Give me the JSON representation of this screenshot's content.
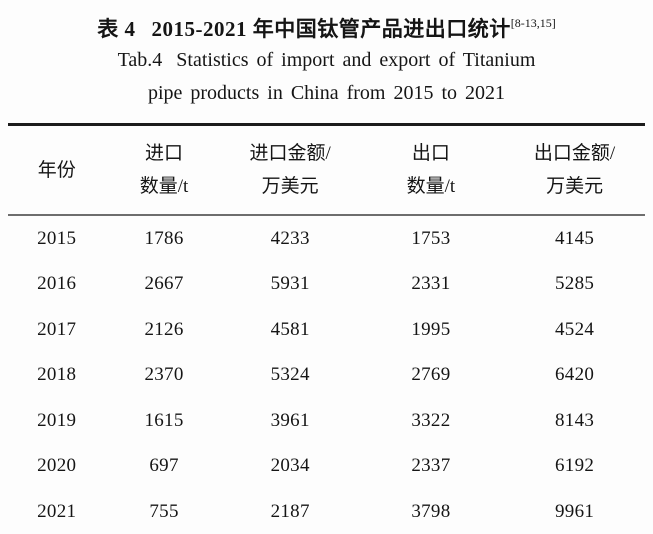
{
  "caption": {
    "zh_prefix": "表 4",
    "zh_text": "2015-2021 年中国钛管产品进出口统计",
    "citation": "[8-13,15]",
    "en_prefix": "Tab.4",
    "en_line1": "Statistics of import and export of Titanium",
    "en_line2": "pipe products in China from 2015 to 2021"
  },
  "table": {
    "header": [
      {
        "line1": "年份"
      },
      {
        "line1": "进口",
        "line2": "数量/t"
      },
      {
        "line1": "进口金额/",
        "line2": "万美元"
      },
      {
        "line1": "出口",
        "line2": "数量/t"
      },
      {
        "line1": "出口金额/",
        "line2": "万美元"
      }
    ],
    "rows": [
      [
        "2015",
        "1786",
        "4233",
        "1753",
        "4145"
      ],
      [
        "2016",
        "2667",
        "5931",
        "2331",
        "5285"
      ],
      [
        "2017",
        "2126",
        "4581",
        "1995",
        "4524"
      ],
      [
        "2018",
        "2370",
        "5324",
        "2769",
        "6420"
      ],
      [
        "2019",
        "1615",
        "3961",
        "3322",
        "8143"
      ],
      [
        "2020",
        "697",
        "2034",
        "2337",
        "6192"
      ],
      [
        "2021",
        "755",
        "2187",
        "3798",
        "9961"
      ]
    ]
  },
  "chart_data": {
    "type": "table",
    "title": "表4 2015-2021年中国钛管产品进出口统计 / Tab.4 Statistics of import and export of Titanium pipe products in China from 2015 to 2021",
    "categories": [
      2015,
      2016,
      2017,
      2018,
      2019,
      2020,
      2021
    ],
    "series": [
      {
        "name": "进口数量/t",
        "values": [
          1786,
          2667,
          2126,
          2370,
          1615,
          697,
          755
        ]
      },
      {
        "name": "进口金额/万美元",
        "values": [
          4233,
          5931,
          4581,
          5324,
          3961,
          2034,
          2187
        ]
      },
      {
        "name": "出口数量/t",
        "values": [
          1753,
          2331,
          1995,
          2769,
          3322,
          2337,
          3798
        ]
      },
      {
        "name": "出口金额/万美元",
        "values": [
          4145,
          5285,
          4524,
          6420,
          8143,
          6192,
          9961
        ]
      }
    ]
  }
}
